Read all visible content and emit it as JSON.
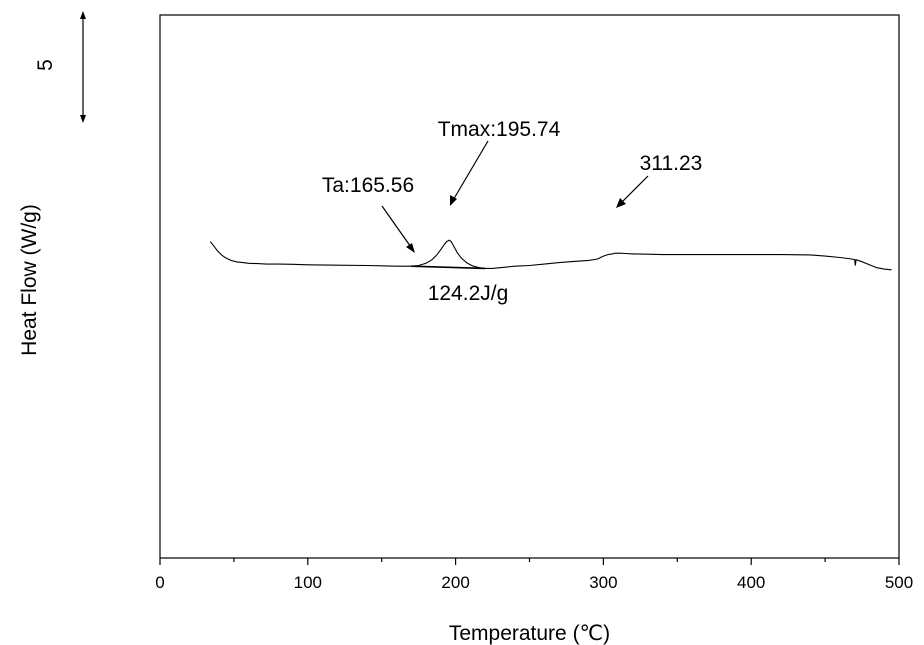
{
  "chart_data": {
    "type": "line",
    "title": "",
    "xlabel": "Temperature (℃)",
    "ylabel": "Heat Flow (W/g)",
    "xlim": [
      0,
      500
    ],
    "ylim": [
      0,
      37.5
    ],
    "x_ticks": [
      "0",
      "100",
      "200",
      "300",
      "400",
      "500"
    ],
    "y_ticks_labeled": false,
    "grid": false,
    "legend": "none",
    "scale_bar": {
      "label": "5",
      "value": 5
    },
    "series": [
      {
        "x": [
          34,
          36,
          39,
          42,
          45,
          48,
          52,
          56,
          60,
          66,
          72,
          80,
          90,
          100,
          120,
          140,
          160,
          170,
          175,
          180,
          184,
          187,
          190,
          192,
          194,
          195.74,
          197,
          199,
          201,
          204,
          208,
          212,
          216,
          220,
          225,
          230,
          240,
          250,
          260,
          270,
          280,
          290,
          296,
          300,
          303,
          306,
          308,
          311.23,
          315,
          320,
          330,
          340,
          360,
          380,
          400,
          420,
          440,
          450,
          460,
          468,
          470,
          470.4,
          471,
          474,
          480,
          485,
          490,
          495
        ],
        "y": [
          21.85,
          21.6,
          21.2,
          20.9,
          20.7,
          20.55,
          20.45,
          20.4,
          20.35,
          20.33,
          20.3,
          20.3,
          20.28,
          20.25,
          20.22,
          20.2,
          20.15,
          20.15,
          20.2,
          20.35,
          20.6,
          20.9,
          21.3,
          21.6,
          21.85,
          21.95,
          21.85,
          21.5,
          21.1,
          20.7,
          20.35,
          20.15,
          20.05,
          20.0,
          20.0,
          20.05,
          20.15,
          20.2,
          20.3,
          20.4,
          20.48,
          20.55,
          20.65,
          20.85,
          20.95,
          21.0,
          21.05,
          21.05,
          21.03,
          21.0,
          20.98,
          20.95,
          20.95,
          20.95,
          20.95,
          20.95,
          20.93,
          20.85,
          20.75,
          20.65,
          20.6,
          20.2,
          20.6,
          20.5,
          20.25,
          20.05,
          19.95,
          19.9
        ]
      }
    ],
    "baseline": {
      "x": [
        170,
        220
      ],
      "y": [
        20.15,
        20.0
      ]
    },
    "annotations": [
      {
        "text": "Ta:165.56",
        "x": 172,
        "y": 20.25
      },
      {
        "text": "Tmax:195.74",
        "x": 195.74,
        "y": 21.95
      },
      {
        "text": "311.23",
        "x": 311.23,
        "y": 21.1
      },
      {
        "text": "124.2J/g",
        "x": 210,
        "y": 20.0
      }
    ]
  }
}
